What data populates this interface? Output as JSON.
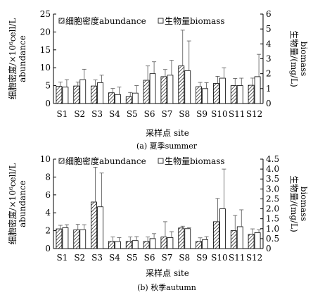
{
  "chart_data": [
    {
      "type": "bar",
      "categories": [
        "S1",
        "S2",
        "S3",
        "S4",
        "S5",
        "S6",
        "S7",
        "S8",
        "S9",
        "S10",
        "S11",
        "S12"
      ],
      "series": [
        {
          "name": "细胞密度abundance",
          "axis": "left",
          "values": [
            4.8,
            4.9,
            4.9,
            3.0,
            1.9,
            6.5,
            7.5,
            10.5,
            4.7,
            5.6,
            5.0,
            5.1
          ],
          "errors": [
            1.2,
            1.1,
            1.7,
            1.2,
            1.2,
            4.0,
            2.0,
            10.0,
            1.2,
            2.0,
            2.0,
            2.0
          ]
        },
        {
          "name": "生物量biomass",
          "axis": "right",
          "values": [
            1.1,
            1.6,
            1.4,
            0.6,
            0.7,
            2.0,
            1.9,
            2.2,
            1.0,
            1.7,
            1.2,
            1.8
          ],
          "errors": [
            0.5,
            0.7,
            0.5,
            0.5,
            0.5,
            0.8,
            1.0,
            2.0,
            0.4,
            0.7,
            0.5,
            1.5
          ]
        }
      ],
      "ylabel": "细胞密度/×10⁶cell/L abundance",
      "y2label": "生物量/(mg/L) biomass",
      "xlabel": "采样点 site",
      "caption": "(a) 夏季summer",
      "ylim": [
        0,
        25
      ],
      "yticks": [
        0,
        5,
        10,
        15,
        20,
        25
      ],
      "y2lim": [
        0,
        6
      ],
      "y2ticks": [
        0,
        1,
        2,
        3,
        4,
        5,
        6
      ],
      "legend_position": "top"
    },
    {
      "type": "bar",
      "categories": [
        "S1",
        "S2",
        "S3",
        "S4",
        "S5",
        "S6",
        "S7",
        "S8",
        "S9",
        "S10",
        "S11",
        "S12"
      ],
      "series": [
        {
          "name": "细胞密度abundance",
          "axis": "left",
          "values": [
            2.2,
            2.1,
            5.2,
            0.8,
            0.8,
            0.8,
            1.3,
            2.3,
            0.8,
            3.0,
            2.0,
            1.6
          ],
          "errors": [
            0.4,
            0.6,
            3.9,
            0.5,
            0.5,
            0.5,
            1.7,
            0.2,
            0.4,
            2.6,
            1.7,
            0.6
          ]
        },
        {
          "name": "生物量biomass",
          "axis": "right",
          "values": [
            1.05,
            0.95,
            2.1,
            0.35,
            0.4,
            0.5,
            0.55,
            1.0,
            0.45,
            2.0,
            1.1,
            0.8
          ],
          "errors": [
            0.15,
            0.25,
            1.7,
            0.2,
            0.2,
            0.25,
            0.3,
            0.05,
            0.15,
            2.0,
            0.85,
            0.15
          ]
        }
      ],
      "ylabel": "细胞密度/×10⁶cell/L abundance",
      "y2label": "生物量/(mg/L) biomass",
      "xlabel": "采样点 site",
      "caption": "(b) 秋季autumn",
      "ylim": [
        0,
        10
      ],
      "yticks": [
        0,
        2,
        4,
        6,
        8,
        10
      ],
      "y2lim": [
        0,
        4.5
      ],
      "y2ticks": [
        0,
        0.5,
        1.0,
        1.5,
        2.0,
        2.5,
        3.0,
        3.5,
        4.0,
        4.5
      ],
      "legend_position": "top"
    }
  ]
}
